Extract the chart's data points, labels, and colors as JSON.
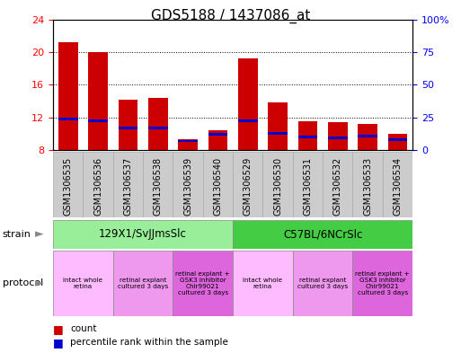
{
  "title": "GDS5188 / 1437086_at",
  "samples": [
    "GSM1306535",
    "GSM1306536",
    "GSM1306537",
    "GSM1306538",
    "GSM1306539",
    "GSM1306540",
    "GSM1306529",
    "GSM1306530",
    "GSM1306531",
    "GSM1306532",
    "GSM1306533",
    "GSM1306534"
  ],
  "count_values": [
    21.2,
    20.0,
    14.2,
    14.4,
    9.3,
    10.4,
    19.2,
    13.8,
    11.5,
    11.4,
    11.2,
    10.0
  ],
  "percentile_values": [
    11.8,
    11.6,
    10.7,
    10.7,
    9.1,
    9.9,
    11.6,
    10.0,
    9.6,
    9.5,
    9.7,
    9.3
  ],
  "blue_bar_height": 0.32,
  "ylim_left": [
    8,
    24
  ],
  "ylim_right": [
    0,
    100
  ],
  "yticks_left": [
    8,
    12,
    16,
    20,
    24
  ],
  "yticks_right": [
    0,
    25,
    50,
    75,
    100
  ],
  "ytick_labels_right": [
    "0",
    "25",
    "50",
    "75",
    "100%"
  ],
  "bar_color_red": "#cc0000",
  "bar_color_blue": "#0000cc",
  "bar_width": 0.65,
  "strain_groups": [
    {
      "label": "129X1/SvJJmsSlc",
      "start": 0,
      "end": 6,
      "color": "#99ee99"
    },
    {
      "label": "C57BL/6NCrSlc",
      "start": 6,
      "end": 12,
      "color": "#44cc44"
    }
  ],
  "protocol_groups": [
    {
      "label": "intact whole\nretina",
      "start": 0,
      "end": 2,
      "color": "#ffbbff"
    },
    {
      "label": "retinal explant\ncultured 3 days",
      "start": 2,
      "end": 4,
      "color": "#ee99ee"
    },
    {
      "label": "retinal explant +\nGSK3 inhibitor\nChir99021\ncultured 3 days",
      "start": 4,
      "end": 6,
      "color": "#dd66dd"
    },
    {
      "label": "intact whole\nretina",
      "start": 6,
      "end": 8,
      "color": "#ffbbff"
    },
    {
      "label": "retinal explant\ncultured 3 days",
      "start": 8,
      "end": 10,
      "color": "#ee99ee"
    },
    {
      "label": "retinal explant +\nGSK3 inhibitor\nChir99021\ncultured 3 days",
      "start": 10,
      "end": 12,
      "color": "#dd66dd"
    }
  ],
  "xticklabel_bg": "#cccccc",
  "xticklabel_fontsize": 7,
  "title_fontsize": 11,
  "background_color": "#ffffff"
}
